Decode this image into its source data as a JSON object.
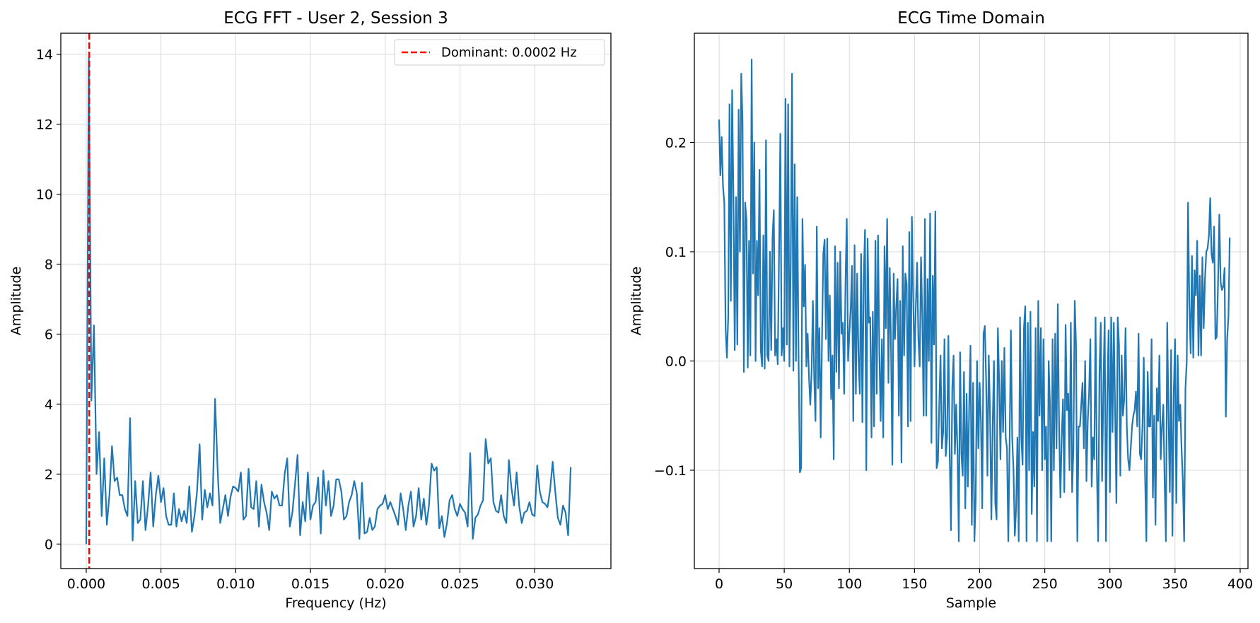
{
  "chart_data": [
    {
      "type": "line",
      "title": "ECG FFT - User 2, Session 3",
      "xlabel": "Frequency (Hz)",
      "ylabel": "Amplitude",
      "xlim": [
        -0.0017,
        0.0351
      ],
      "ylim": [
        -0.7,
        14.6
      ],
      "xticks": [
        0.0,
        0.005,
        0.01,
        0.015,
        0.02,
        0.025,
        0.03
      ],
      "xtick_labels": [
        "0.000",
        "0.005",
        "0.010",
        "0.015",
        "0.020",
        "0.025",
        "0.030"
      ],
      "yticks": [
        0,
        2,
        4,
        6,
        8,
        10,
        12,
        14
      ],
      "ytick_labels": [
        "0",
        "2",
        "4",
        "6",
        "8",
        "10",
        "12",
        "14"
      ],
      "grid": true,
      "legend_position": "top-right",
      "series": [
        {
          "color": "#1f77b4",
          "x_start": 0.0,
          "x_step": 0.0001724,
          "y": [
            0.0,
            13.9,
            4.1,
            6.25,
            2.0,
            3.2,
            0.8,
            2.45,
            0.55,
            1.4,
            2.8,
            1.8,
            1.9,
            1.4,
            1.4,
            1.0,
            0.8,
            3.6,
            0.1,
            1.8,
            0.6,
            0.7,
            1.8,
            0.4,
            1.1,
            2.05,
            0.5,
            1.4,
            1.95,
            1.2,
            1.6,
            0.8,
            0.55,
            0.55,
            1.45,
            0.5,
            1.0,
            0.65,
            0.95,
            0.6,
            1.65,
            0.35,
            0.8,
            1.5,
            2.85,
            0.7,
            1.55,
            1.05,
            1.45,
            1.1,
            4.15,
            2.1,
            0.6,
            1.0,
            1.4,
            0.8,
            1.35,
            1.65,
            1.6,
            1.5,
            2.05,
            0.7,
            0.8,
            2.15,
            1.05,
            1.0,
            1.8,
            0.5,
            1.7,
            1.2,
            0.9,
            0.4,
            1.5,
            1.3,
            1.4,
            1.1,
            1.1,
            2.0,
            2.45,
            0.5,
            0.9,
            1.7,
            2.55,
            0.25,
            1.2,
            0.65,
            2.05,
            0.7,
            1.1,
            1.2,
            1.9,
            0.3,
            2.1,
            1.1,
            1.8,
            0.8,
            1.1,
            1.85,
            1.85,
            1.5,
            0.7,
            0.8,
            1.2,
            1.4,
            1.8,
            1.45,
            0.15,
            1.75,
            0.3,
            0.35,
            0.75,
            0.4,
            0.5,
            1.0,
            1.1,
            1.15,
            1.4,
            1.0,
            1.2,
            1.0,
            0.8,
            0.55,
            1.45,
            1.0,
            0.4,
            1.1,
            1.5,
            0.5,
            0.8,
            1.6,
            0.7,
            1.3,
            0.55,
            1.1,
            2.3,
            2.1,
            2.2,
            0.45,
            0.8,
            0.2,
            0.6,
            1.25,
            1.4,
            1.0,
            0.8,
            1.15,
            1.0,
            0.9,
            0.5,
            2.6,
            0.15,
            0.75,
            0.85,
            1.1,
            1.25,
            3.0,
            2.3,
            2.45,
            1.2,
            0.95,
            0.9,
            1.4,
            0.8,
            0.6,
            2.4,
            1.6,
            1.1,
            2.05,
            1.1,
            0.6,
            0.9,
            0.95,
            1.2,
            0.85,
            0.8,
            2.25,
            1.5,
            1.2,
            1.15,
            1.05,
            1.55,
            2.35,
            1.5,
            0.75,
            0.55,
            1.1,
            0.9,
            0.25,
            2.2
          ]
        }
      ],
      "annotations": [
        {
          "type": "vline",
          "x": 0.0002,
          "color": "#ff0000",
          "style": "dashed",
          "label": "Dominant: 0.0002 Hz"
        }
      ]
    },
    {
      "type": "line",
      "title": "ECG Time Domain",
      "xlabel": "Sample",
      "ylabel": "Amplitude",
      "xlim": [
        -19,
        406
      ],
      "ylim": [
        -0.19,
        0.3
      ],
      "xticks": [
        0,
        50,
        100,
        150,
        200,
        250,
        300,
        350,
        400
      ],
      "xtick_labels": [
        "0",
        "50",
        "100",
        "150",
        "200",
        "250",
        "300",
        "350",
        "400"
      ],
      "yticks": [
        -0.1,
        0.0,
        0.1,
        0.2
      ],
      "ytick_labels": [
        "−0.1",
        "0.0",
        "0.1",
        "0.2"
      ],
      "grid": true,
      "series": [
        {
          "color": "#1f77b4",
          "x_start": 0,
          "x_step": 1,
          "y": [
            0.221,
            0.17,
            0.205,
            0.16,
            0.145,
            0.03,
            0.003,
            0.04,
            0.235,
            0.055,
            0.248,
            0.15,
            0.01,
            0.15,
            0.015,
            0.23,
            0.1,
            0.263,
            0.22,
            -0.01,
            0.145,
            0.13,
            -0.006,
            0.11,
            0.005,
            0.276,
            0.08,
            0.2,
            0.0,
            0.11,
            0.06,
            0.175,
            0.01,
            -0.005,
            0.115,
            -0.007,
            0.202,
            0.005,
            0.0,
            0.1,
            0.01,
            0.113,
            0.138,
            0.005,
            0.02,
            -0.003,
            0.095,
            0.208,
            0.005,
            0.03,
            0.0,
            0.24,
            0.015,
            0.235,
            -0.005,
            0.09,
            0.263,
            -0.009,
            0.18,
            0.0,
            0.15,
            0.005,
            -0.102,
            -0.098,
            0.13,
            0.05,
            0.088,
            -0.005,
            0.025,
            -0.015,
            -0.04,
            -0.01,
            0.055,
            -0.015,
            -0.055,
            0.123,
            -0.025,
            0.03,
            -0.07,
            0.02,
            0.098,
            0.111,
            0.02,
            0.112,
            0.0,
            0.06,
            -0.035,
            0.005,
            -0.09,
            0.105,
            -0.01,
            0.09,
            -0.025,
            0.1,
            0.025,
            0.035,
            -0.03,
            0.07,
            0.13,
            0.0,
            0.025,
            0.047,
            0.087,
            -0.055,
            0.106,
            -0.03,
            0.08,
            0.003,
            -0.03,
            0.098,
            -0.056,
            0.075,
            0.12,
            -0.1,
            0.112,
            0.035,
            0.04,
            -0.07,
            0.045,
            -0.06,
            0.11,
            -0.03,
            0.115,
            0.01,
            -0.055,
            0.02,
            -0.07,
            0.105,
            0.03,
            0.13,
            -0.02,
            0.085,
            0.01,
            -0.095,
            0.08,
            0.02,
            0.05,
            0.075,
            -0.05,
            0.055,
            -0.093,
            0.105,
            0.005,
            0.08,
            0.07,
            -0.06,
            0.118,
            -0.055,
            0.132,
            0.06,
            -0.005,
            0.05,
            0.09,
            0.02,
            -0.005,
            0.095,
            0.04,
            -0.05,
            0.13,
            -0.05,
            0.075,
            0.0,
            0.135,
            -0.075,
            0.078,
            0.015,
            0.137,
            -0.098,
            -0.092,
            -0.04,
            0.005,
            -0.08,
            -0.065,
            0.02,
            -0.087,
            -0.07,
            0.023,
            -0.085,
            -0.155,
            -0.025,
            0.005,
            -0.085,
            -0.04,
            -0.082,
            -0.165,
            0.008,
            -0.085,
            -0.105,
            -0.01,
            -0.135,
            -0.03,
            -0.115,
            -0.04,
            0.014,
            -0.15,
            -0.02,
            -0.165,
            -0.125,
            0.0,
            -0.08,
            -0.02,
            -0.055,
            -0.135,
            0.025,
            0.032,
            -0.018,
            -0.105,
            0.005,
            -0.05,
            -0.145,
            -0.06,
            0.0,
            -0.13,
            -0.145,
            0.03,
            -0.02,
            -0.09,
            0.0,
            -0.065,
            0.012,
            -0.07,
            -0.08,
            -0.165,
            -0.075,
            0.028,
            -0.07,
            -0.1,
            -0.16,
            -0.135,
            -0.07,
            -0.165,
            0.04,
            -0.07,
            -0.095,
            0.03,
            0.05,
            -0.165,
            0.035,
            -0.1,
            0.045,
            -0.14,
            -0.065,
            -0.115,
            0.03,
            -0.165,
            0.055,
            -0.05,
            0.03,
            -0.1,
            0.02,
            -0.09,
            -0.06,
            -0.165,
            0.0,
            -0.04,
            -0.165,
            0.02,
            -0.1,
            0.025,
            -0.08,
            0.052,
            -0.06,
            -0.125,
            -0.07,
            -0.035,
            -0.12,
            0.033,
            -0.045,
            -0.03,
            -0.1,
            0.035,
            -0.12,
            -0.08,
            0.055,
            0.015,
            -0.165,
            -0.06,
            -0.06,
            -0.04,
            -0.02,
            -0.08,
            0.0,
            -0.11,
            -0.055,
            -0.03,
            0.02,
            -0.115,
            -0.07,
            -0.09,
            0.04,
            -0.1,
            -0.165,
            -0.01,
            0.035,
            -0.11,
            -0.025,
            0.04,
            -0.165,
            -0.03,
            0.028,
            -0.12,
            0.04,
            -0.065,
            0.035,
            -0.045,
            -0.13,
            0.04,
            0.015,
            -0.105,
            0.005,
            -0.05,
            -0.035,
            0.03,
            -0.06,
            -0.09,
            -0.1,
            -0.08,
            -0.06,
            -0.05,
            -0.045,
            -0.028,
            -0.06,
            0.025,
            -0.085,
            -0.09,
            -0.06,
            0.003,
            -0.105,
            -0.165,
            -0.01,
            -0.06,
            -0.06,
            0.02,
            -0.125,
            -0.05,
            -0.15,
            -0.025,
            -0.055,
            0.005,
            -0.09,
            -0.06,
            -0.04,
            -0.11,
            -0.165,
            0.035,
            -0.05,
            -0.12,
            0.01,
            -0.16,
            -0.03,
            0.02,
            -0.13,
            0.005,
            -0.055,
            -0.04,
            -0.08,
            -0.11,
            -0.165,
            -0.025,
            0.0,
            0.145,
            0.05,
            0.007,
            0.096,
            0.003,
            0.083,
            0.06,
            0.11,
            0.005,
            0.078,
            0.005,
            0.095,
            0.03,
            0.075,
            0.1,
            0.103,
            0.115,
            0.149,
            0.098,
            0.09,
            0.123,
            0.02,
            0.022,
            0.07,
            0.134,
            0.072,
            0.065,
            0.068,
            0.085,
            -0.051,
            0.02,
            0.04,
            0.113
          ]
        }
      ]
    }
  ]
}
